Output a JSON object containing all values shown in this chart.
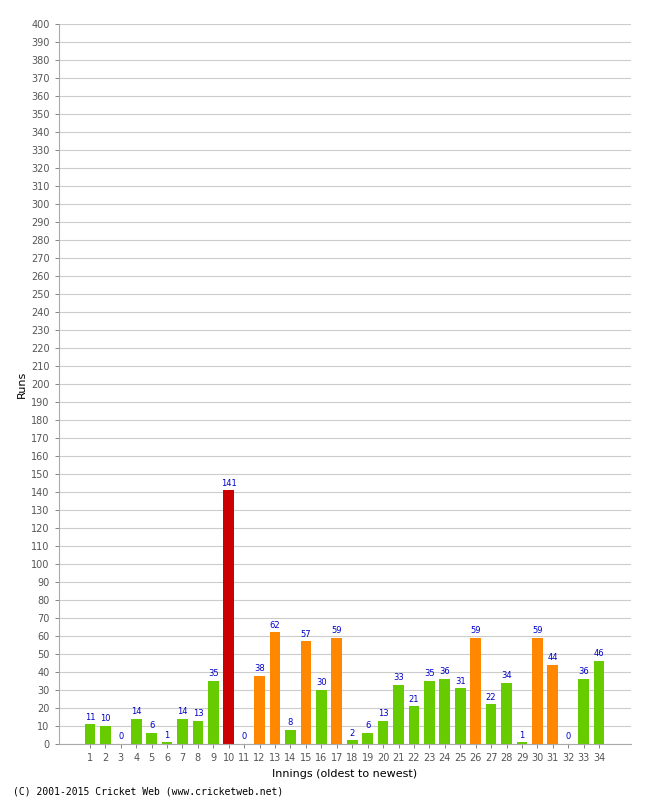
{
  "innings": [
    1,
    2,
    3,
    4,
    5,
    6,
    7,
    8,
    9,
    10,
    11,
    12,
    13,
    14,
    15,
    16,
    17,
    18,
    19,
    20,
    21,
    22,
    23,
    24,
    25,
    26,
    27,
    28,
    29,
    30,
    31,
    32,
    33,
    34
  ],
  "values": [
    11,
    10,
    0,
    14,
    6,
    1,
    14,
    13,
    35,
    141,
    0,
    38,
    62,
    8,
    57,
    30,
    59,
    2,
    6,
    13,
    33,
    21,
    35,
    36,
    31,
    59,
    22,
    34,
    1,
    59,
    44,
    0,
    36,
    46
  ],
  "colors": [
    "#66cc00",
    "#66cc00",
    "#66cc00",
    "#66cc00",
    "#66cc00",
    "#66cc00",
    "#66cc00",
    "#66cc00",
    "#66cc00",
    "#cc0000",
    "#66cc00",
    "#ff8800",
    "#ff8800",
    "#66cc00",
    "#ff8800",
    "#66cc00",
    "#ff8800",
    "#66cc00",
    "#66cc00",
    "#66cc00",
    "#66cc00",
    "#66cc00",
    "#66cc00",
    "#66cc00",
    "#66cc00",
    "#ff8800",
    "#66cc00",
    "#66cc00",
    "#66cc00",
    "#ff8800",
    "#ff8800",
    "#66cc00",
    "#66cc00",
    "#66cc00"
  ],
  "ylabel": "Runs",
  "xlabel": "Innings (oldest to newest)",
  "ylim": [
    0,
    400
  ],
  "yticks": [
    0,
    10,
    20,
    30,
    40,
    50,
    60,
    70,
    80,
    90,
    100,
    110,
    120,
    130,
    140,
    150,
    160,
    170,
    180,
    190,
    200,
    210,
    220,
    230,
    240,
    250,
    260,
    270,
    280,
    290,
    300,
    310,
    320,
    330,
    340,
    350,
    360,
    370,
    380,
    390,
    400
  ],
  "footer": "(C) 2001-2015 Cricket Web (www.cricketweb.net)",
  "bg_color": "#ffffff",
  "grid_color": "#cccccc",
  "label_color": "#0000cc",
  "bar_width": 0.7,
  "tick_fontsize": 7,
  "label_fontsize": 8,
  "value_label_fontsize": 6
}
